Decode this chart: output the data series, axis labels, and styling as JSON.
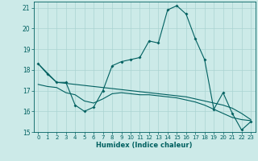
{
  "xlabel": "Humidex (Indice chaleur)",
  "bg_color": "#cceae8",
  "grid_color": "#aad4d2",
  "line_color": "#006060",
  "xlim": [
    -0.5,
    23.5
  ],
  "ylim": [
    15,
    21.3
  ],
  "xticks": [
    0,
    1,
    2,
    3,
    4,
    5,
    6,
    7,
    8,
    9,
    10,
    11,
    12,
    13,
    14,
    15,
    16,
    17,
    18,
    19,
    20,
    21,
    22,
    23
  ],
  "yticks": [
    15,
    16,
    17,
    18,
    19,
    20,
    21
  ],
  "curve1_x": [
    0,
    1,
    2,
    3,
    4,
    5,
    6,
    7,
    8,
    9,
    10,
    11,
    12,
    13,
    14,
    15,
    16,
    17,
    18,
    19,
    20,
    21,
    22,
    23
  ],
  "curve1_y": [
    18.3,
    17.8,
    17.4,
    17.4,
    16.3,
    16.0,
    16.2,
    17.0,
    18.2,
    18.4,
    18.5,
    18.6,
    19.4,
    19.3,
    20.9,
    21.1,
    20.7,
    19.5,
    18.5,
    16.1,
    16.9,
    15.9,
    15.1,
    15.5
  ],
  "curve2_x": [
    0,
    2,
    3,
    4,
    5,
    6,
    7,
    8,
    9,
    10,
    11,
    12,
    13,
    14,
    15,
    16,
    17,
    18,
    19,
    20,
    21,
    22,
    23
  ],
  "curve2_y": [
    18.3,
    17.4,
    17.35,
    17.3,
    17.25,
    17.2,
    17.15,
    17.1,
    17.05,
    17.0,
    16.95,
    16.9,
    16.85,
    16.8,
    16.75,
    16.7,
    16.6,
    16.5,
    16.4,
    16.3,
    16.15,
    15.9,
    15.6
  ],
  "curve3_x": [
    0,
    1,
    2,
    3,
    4,
    5,
    6,
    7,
    8,
    9,
    10,
    11,
    12,
    13,
    14,
    15,
    16,
    17,
    18,
    19,
    20,
    21,
    22,
    23
  ],
  "curve3_y": [
    17.3,
    17.2,
    17.15,
    16.9,
    16.8,
    16.5,
    16.4,
    16.6,
    16.85,
    16.9,
    16.85,
    16.8,
    16.8,
    16.75,
    16.7,
    16.65,
    16.55,
    16.45,
    16.3,
    16.1,
    15.9,
    15.7,
    15.6,
    15.55
  ]
}
